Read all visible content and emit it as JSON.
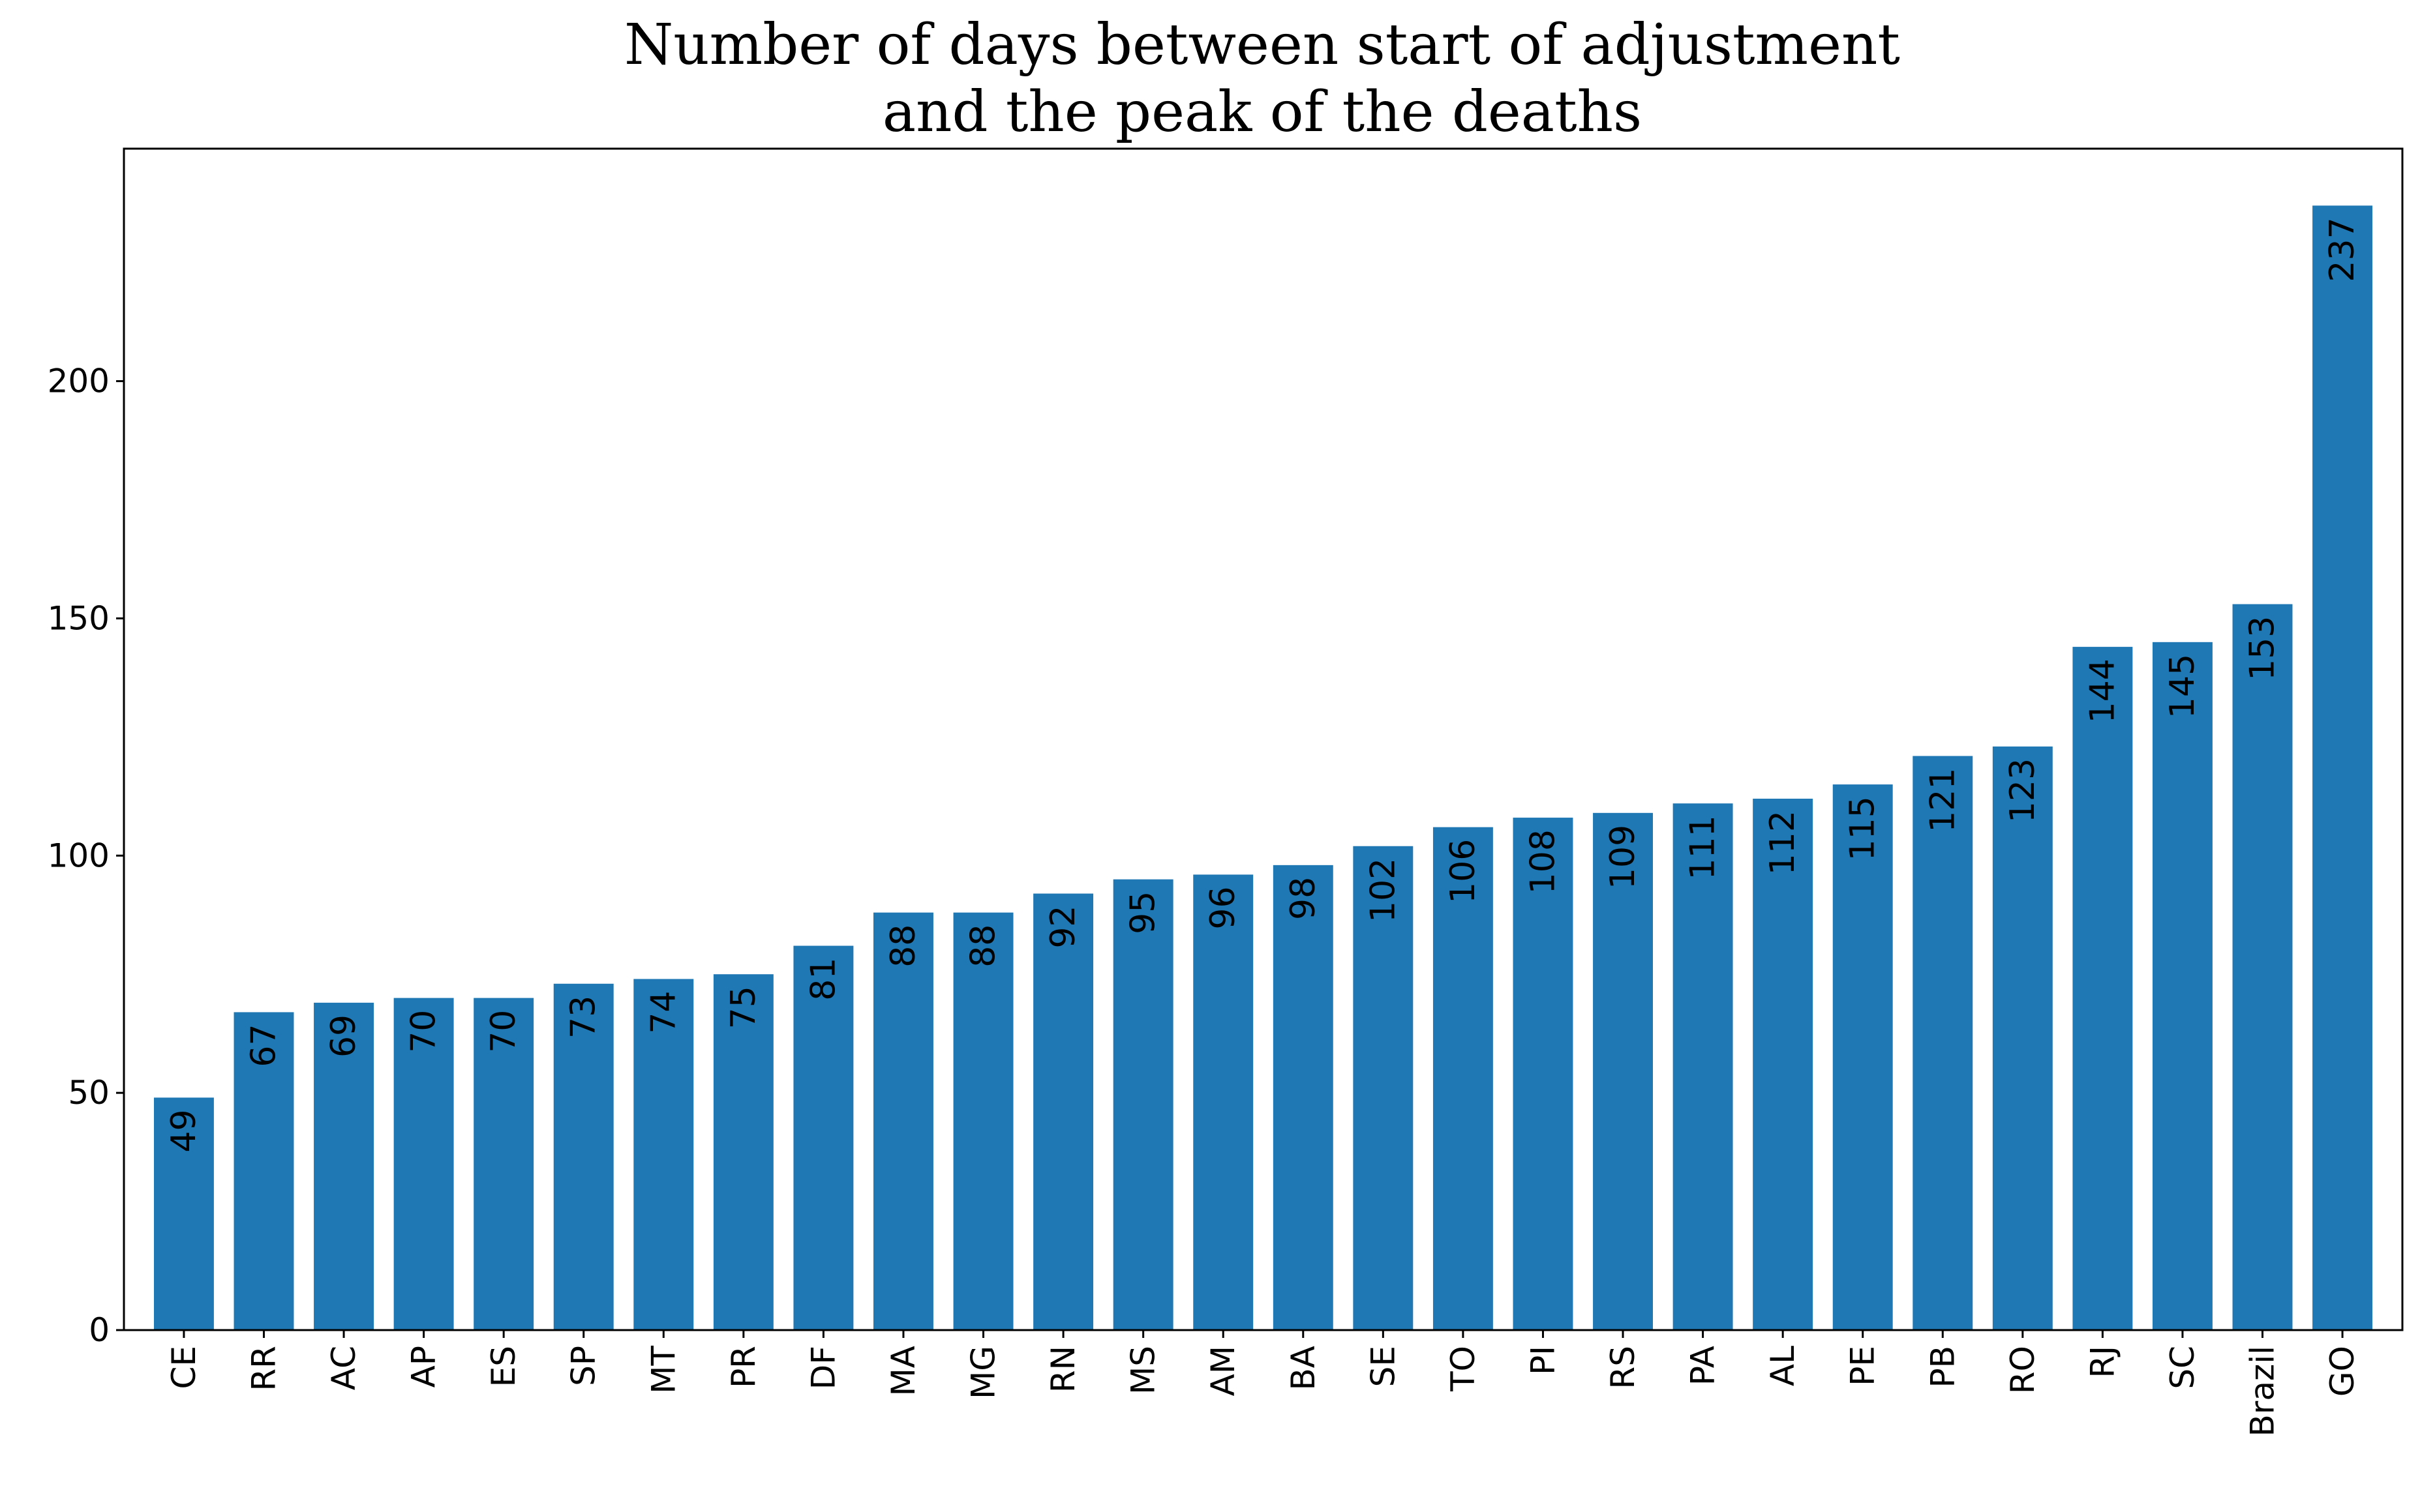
{
  "chart_data": {
    "type": "bar",
    "title_lines": [
      "Number of days between start of adjustment",
      "and the peak of the deaths"
    ],
    "categories": [
      "CE",
      "RR",
      "AC",
      "AP",
      "ES",
      "SP",
      "MT",
      "PR",
      "DF",
      "MA",
      "MG",
      "RN",
      "MS",
      "AM",
      "BA",
      "SE",
      "TO",
      "PI",
      "RS",
      "PA",
      "AL",
      "PE",
      "PB",
      "RO",
      "RJ",
      "SC",
      "Brazil",
      "GO"
    ],
    "values": [
      49,
      67,
      69,
      70,
      70,
      73,
      74,
      75,
      81,
      88,
      88,
      92,
      95,
      96,
      98,
      102,
      106,
      108,
      109,
      111,
      112,
      115,
      121,
      123,
      144,
      145,
      153,
      237
    ],
    "yticks": [
      0,
      50,
      100,
      150,
      200
    ],
    "ylim": [
      0,
      249
    ],
    "bar_color": "#1f77b4",
    "grid": false,
    "legend": "none"
  }
}
